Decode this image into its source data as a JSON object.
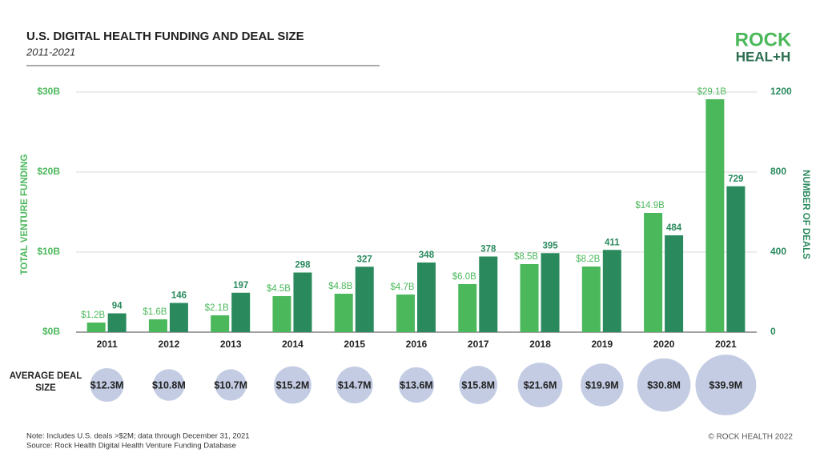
{
  "chart_data": {
    "type": "bar",
    "title": "U.S. DIGITAL HEALTH FUNDING AND DEAL SIZE",
    "subtitle": "2011-2021",
    "logo": [
      "ROCK",
      "HEAL+H"
    ],
    "y_label": "TOTAL VENTURE FUNDING",
    "y2_label": "NUMBER OF DEALS",
    "categories": [
      "2011",
      "2012",
      "2013",
      "2014",
      "2015",
      "2016",
      "2017",
      "2018",
      "2019",
      "2020",
      "2021"
    ],
    "series": [
      {
        "name": "Total venture funding",
        "color": "#4cb85c",
        "values": [
          1.2,
          1.6,
          2.1,
          4.5,
          4.8,
          4.7,
          6.0,
          8.5,
          8.2,
          14.9,
          29.1
        ],
        "value_labels": [
          "$1.2B",
          "$1.6B",
          "$2.1B",
          "$4.5B",
          "$4.8B",
          "$4.7B",
          "$6.0B",
          "$8.5B",
          "$8.2B",
          "$14.9B",
          "$29.1B"
        ]
      },
      {
        "name": "Number of deals",
        "color": "#2a8a5e",
        "axis": "y2",
        "values": [
          94,
          146,
          197,
          298,
          327,
          348,
          378,
          395,
          411,
          484,
          729
        ]
      }
    ],
    "ylim": [
      0,
      30
    ],
    "yticks": [
      {
        "value": 0,
        "label": "$0B"
      },
      {
        "value": 10,
        "label": "$10B"
      },
      {
        "value": 20,
        "label": "$20B"
      },
      {
        "value": 30,
        "label": "$30B"
      }
    ],
    "y2lim": [
      0,
      1200
    ],
    "y2ticks": [
      0,
      400,
      800,
      1200
    ],
    "grid": true,
    "deal_size": {
      "label": "AVERAGE DEAL SIZE",
      "color": "#b8c3de",
      "values": [
        12.3,
        10.8,
        10.7,
        15.2,
        14.7,
        13.6,
        15.8,
        21.6,
        19.9,
        30.8,
        39.9
      ],
      "value_labels": [
        "$12.3M",
        "$10.8M",
        "$10.7M",
        "$15.2M",
        "$14.7M",
        "$13.6M",
        "$15.8M",
        "$21.6M",
        "$19.9M",
        "$30.8M",
        "$39.9M"
      ]
    },
    "notes": [
      "Note: Includes U.S. deals >$2M; data through December 31, 2021",
      "Source: Rock Health Digital Health Venture Funding Database"
    ],
    "copyright": "© ROCK HEALTH 2022"
  }
}
